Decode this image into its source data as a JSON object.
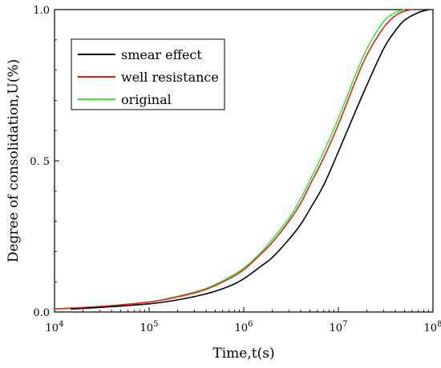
{
  "chart_data": {
    "type": "line",
    "title": "",
    "xlabel": "Time,t(s)",
    "ylabel": "Degree of consolidation,U(%)",
    "xscale": "log",
    "xlim": [
      10000,
      100000000
    ],
    "ylim": [
      0,
      1
    ],
    "grid": false,
    "legend_position": "top-left",
    "x_ticks": [
      10000,
      100000,
      1000000,
      10000000,
      100000000
    ],
    "x_tick_labels": [
      {
        "base": "10",
        "exp": "4"
      },
      {
        "base": "10",
        "exp": "5"
      },
      {
        "base": "10",
        "exp": "6"
      },
      {
        "base": "10",
        "exp": "7"
      },
      {
        "base": "10",
        "exp": "8"
      }
    ],
    "y_ticks": [
      0,
      0.5,
      1
    ],
    "y_tick_labels": [
      "0.0",
      "0. 5",
      "1.0"
    ],
    "series": [
      {
        "name": "smear effect",
        "color": "#000000",
        "x": [
          15000,
          30000,
          100000,
          200000,
          400000,
          700000,
          1000000,
          1500000,
          2000000,
          3000000,
          4000000,
          5000000,
          7000000,
          10000000,
          15000000,
          20000000,
          30000000,
          40000000,
          50000000,
          70000000,
          90000000
        ],
        "y": [
          0.01,
          0.015,
          0.027,
          0.04,
          0.06,
          0.085,
          0.11,
          0.15,
          0.18,
          0.24,
          0.29,
          0.34,
          0.42,
          0.53,
          0.66,
          0.75,
          0.87,
          0.93,
          0.965,
          0.99,
          1.0
        ]
      },
      {
        "name": "well resistance",
        "color": "#e8201c",
        "x": [
          10000,
          30000,
          100000,
          200000,
          400000,
          700000,
          1000000,
          1500000,
          2000000,
          3000000,
          4000000,
          5000000,
          7000000,
          10000000,
          15000000,
          20000000,
          30000000,
          40000000,
          50000000,
          60000000
        ],
        "y": [
          0.01,
          0.018,
          0.033,
          0.05,
          0.075,
          0.11,
          0.14,
          0.19,
          0.23,
          0.3,
          0.36,
          0.42,
          0.51,
          0.62,
          0.76,
          0.85,
          0.94,
          0.98,
          0.995,
          1.0
        ]
      },
      {
        "name": "original",
        "color": "#3be83b",
        "x": [
          10000,
          30000,
          100000,
          200000,
          400000,
          700000,
          1000000,
          1500000,
          2000000,
          3000000,
          4000000,
          5000000,
          7000000,
          10000000,
          15000000,
          20000000,
          30000000,
          40000000,
          50000000
        ],
        "y": [
          0.01,
          0.018,
          0.033,
          0.052,
          0.078,
          0.115,
          0.145,
          0.195,
          0.24,
          0.31,
          0.375,
          0.435,
          0.53,
          0.64,
          0.78,
          0.87,
          0.96,
          0.99,
          1.0
        ]
      }
    ]
  }
}
